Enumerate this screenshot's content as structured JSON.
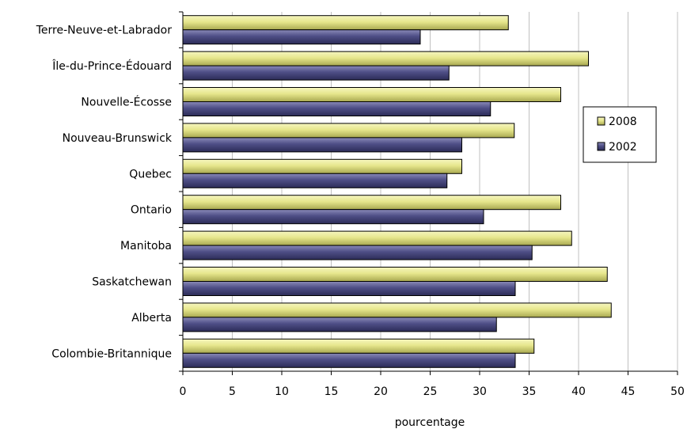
{
  "chart_data": {
    "type": "bar",
    "orientation": "horizontal",
    "categories": [
      "Terre-Neuve-et-Labrador",
      "Île-du-Prince-Édouard",
      "Nouvelle-Écosse",
      "Nouveau-Brunswick",
      "Quebec",
      "Ontario",
      "Manitoba",
      "Saskatchewan",
      "Alberta",
      "Colombie-Britannique"
    ],
    "series": [
      {
        "name": "2008",
        "color": "#e6e68c",
        "values": [
          32.9,
          41.0,
          38.2,
          33.5,
          28.2,
          38.2,
          39.3,
          42.9,
          43.3,
          35.5
        ]
      },
      {
        "name": "2002",
        "color": "#4e4e86",
        "values": [
          24.0,
          26.9,
          31.1,
          28.2,
          26.7,
          30.4,
          35.3,
          33.6,
          31.7,
          33.6
        ]
      }
    ],
    "xlabel": "pourcentage",
    "xlim": [
      0,
      50
    ],
    "xticks": [
      "0",
      "5",
      "10",
      "15",
      "20",
      "25",
      "30",
      "35",
      "40",
      "45",
      "50"
    ],
    "grid": "vertical",
    "legend": "right",
    "title": ""
  }
}
